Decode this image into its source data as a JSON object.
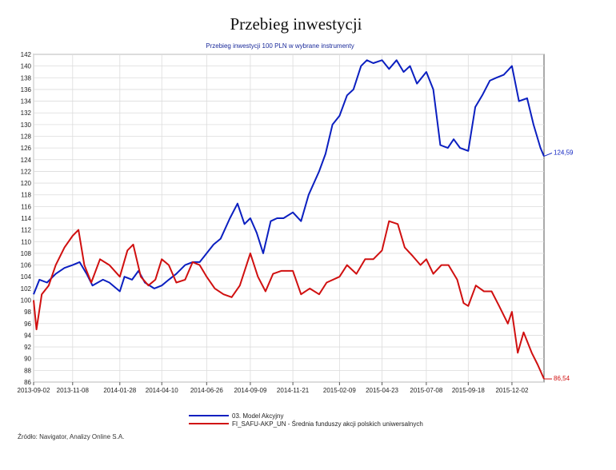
{
  "page": {
    "title": "Przebieg inwestycji",
    "subtitle": "Przebieg inwestycji 100 PLN w wybrane instrumenty",
    "source": "Źródło: Navigator, Analizy Online S.A."
  },
  "colors": {
    "blue": "#0b1fc0",
    "red": "#d01010",
    "grid": "#dcdcdc",
    "axis": "#555555"
  },
  "chart_data": {
    "type": "line",
    "title": "Przebieg inwestycji",
    "subtitle": "Przebieg inwestycji 100 PLN w wybrane instrumenty",
    "ylim": [
      86,
      142
    ],
    "yticks": [
      86,
      88,
      90,
      92,
      94,
      96,
      98,
      100,
      102,
      104,
      106,
      108,
      110,
      112,
      114,
      116,
      118,
      120,
      122,
      124,
      126,
      128,
      130,
      132,
      134,
      136,
      138,
      140,
      142
    ],
    "xticks": [
      "2013-09-02",
      "2013-11-08",
      "2014-01-28",
      "2014-04-10",
      "2014-06-26",
      "2014-09-09",
      "2014-11-21",
      "2015-02-09",
      "2015-04-23",
      "2015-07-08",
      "2015-09-18",
      "2015-12-02"
    ],
    "x_range": [
      "2013-09-02",
      "2016-01-26"
    ],
    "grid": true,
    "legend_position": "bottom",
    "series": [
      {
        "name": "03. Model Akcyjny",
        "color": "#0b1fc0",
        "end_label": "124,59",
        "x": [
          "2013-09-02",
          "2013-09-12",
          "2013-09-25",
          "2013-10-10",
          "2013-10-25",
          "2013-11-08",
          "2013-11-20",
          "2013-12-02",
          "2013-12-12",
          "2013-12-30",
          "2014-01-10",
          "2014-01-28",
          "2014-02-05",
          "2014-02-18",
          "2014-03-01",
          "2014-03-12",
          "2014-03-28",
          "2014-04-10",
          "2014-04-22",
          "2014-05-05",
          "2014-05-20",
          "2014-06-02",
          "2014-06-14",
          "2014-06-26",
          "2014-07-08",
          "2014-07-20",
          "2014-08-05",
          "2014-08-18",
          "2014-08-30",
          "2014-09-09",
          "2014-09-20",
          "2014-10-01",
          "2014-10-14",
          "2014-10-25",
          "2014-11-05",
          "2014-11-21",
          "2014-12-05",
          "2014-12-18",
          "2015-01-05",
          "2015-01-16",
          "2015-01-28",
          "2015-02-09",
          "2015-02-22",
          "2015-03-05",
          "2015-03-18",
          "2015-03-28",
          "2015-04-08",
          "2015-04-23",
          "2015-05-05",
          "2015-05-18",
          "2015-05-30",
          "2015-06-10",
          "2015-06-22",
          "2015-07-08",
          "2015-07-20",
          "2015-08-01",
          "2015-08-14",
          "2015-08-24",
          "2015-09-04",
          "2015-09-18",
          "2015-09-30",
          "2015-10-12",
          "2015-10-25",
          "2015-11-05",
          "2015-11-18",
          "2015-12-02",
          "2015-12-14",
          "2015-12-28",
          "2016-01-08",
          "2016-01-20",
          "2016-01-26"
        ],
        "values": [
          101,
          103.5,
          103,
          104.5,
          105.5,
          106,
          106.5,
          104.5,
          102.5,
          103.5,
          103,
          101.5,
          104,
          103.5,
          105,
          103,
          102,
          102.5,
          103.5,
          104.5,
          106,
          106.5,
          106.5,
          108,
          109.5,
          110.5,
          114,
          116.5,
          113,
          114,
          111.5,
          108,
          113.5,
          114,
          114,
          115,
          113.5,
          118,
          122,
          125,
          130,
          131.5,
          135,
          136,
          140,
          141,
          140.5,
          141,
          139.5,
          141,
          139,
          140,
          137,
          139,
          136,
          126.5,
          126,
          127.5,
          126,
          125.5,
          133,
          135,
          137.5,
          138,
          138.5,
          140,
          134,
          134.5,
          130,
          126,
          124.59
        ]
      },
      {
        "name": "FI_SAFU-AKP_UN - Średnia funduszy akcji polskich uniwersalnych",
        "color": "#d01010",
        "end_label": "86,54",
        "x": [
          "2013-09-02",
          "2013-09-07",
          "2013-09-16",
          "2013-09-28",
          "2013-10-10",
          "2013-10-25",
          "2013-11-08",
          "2013-11-18",
          "2013-11-28",
          "2013-12-10",
          "2013-12-25",
          "2014-01-10",
          "2014-01-28",
          "2014-02-10",
          "2014-02-20",
          "2014-03-05",
          "2014-03-18",
          "2014-03-30",
          "2014-04-10",
          "2014-04-22",
          "2014-05-05",
          "2014-05-20",
          "2014-06-02",
          "2014-06-14",
          "2014-06-26",
          "2014-07-10",
          "2014-07-25",
          "2014-08-08",
          "2014-08-22",
          "2014-09-09",
          "2014-09-22",
          "2014-10-05",
          "2014-10-18",
          "2014-11-01",
          "2014-11-12",
          "2014-11-21",
          "2014-12-05",
          "2014-12-20",
          "2015-01-05",
          "2015-01-18",
          "2015-02-09",
          "2015-02-22",
          "2015-03-10",
          "2015-03-25",
          "2015-04-08",
          "2015-04-23",
          "2015-05-05",
          "2015-05-20",
          "2015-06-01",
          "2015-06-15",
          "2015-06-28",
          "2015-07-08",
          "2015-07-20",
          "2015-08-03",
          "2015-08-15",
          "2015-08-30",
          "2015-09-10",
          "2015-09-18",
          "2015-10-01",
          "2015-10-15",
          "2015-10-28",
          "2015-11-10",
          "2015-11-25",
          "2015-12-02",
          "2015-12-12",
          "2015-12-22",
          "2016-01-05",
          "2016-01-15",
          "2016-01-26"
        ],
        "values": [
          100,
          95,
          101,
          102.5,
          106,
          109,
          111,
          112,
          106,
          103,
          107,
          106,
          104,
          108.5,
          109.5,
          104,
          102.5,
          103.5,
          107,
          106,
          103,
          103.5,
          106.5,
          106,
          104,
          102,
          101,
          100.5,
          102.5,
          108,
          104,
          101.5,
          104.5,
          105,
          105,
          105,
          101,
          102,
          101,
          103,
          104,
          106,
          104.5,
          107,
          107,
          108.5,
          113.5,
          113,
          109,
          107.5,
          106,
          107,
          104.5,
          106,
          106,
          103.5,
          99.5,
          99,
          102.5,
          101.5,
          101.5,
          99,
          96,
          98,
          91,
          94.5,
          91,
          89,
          86.54
        ]
      }
    ]
  }
}
